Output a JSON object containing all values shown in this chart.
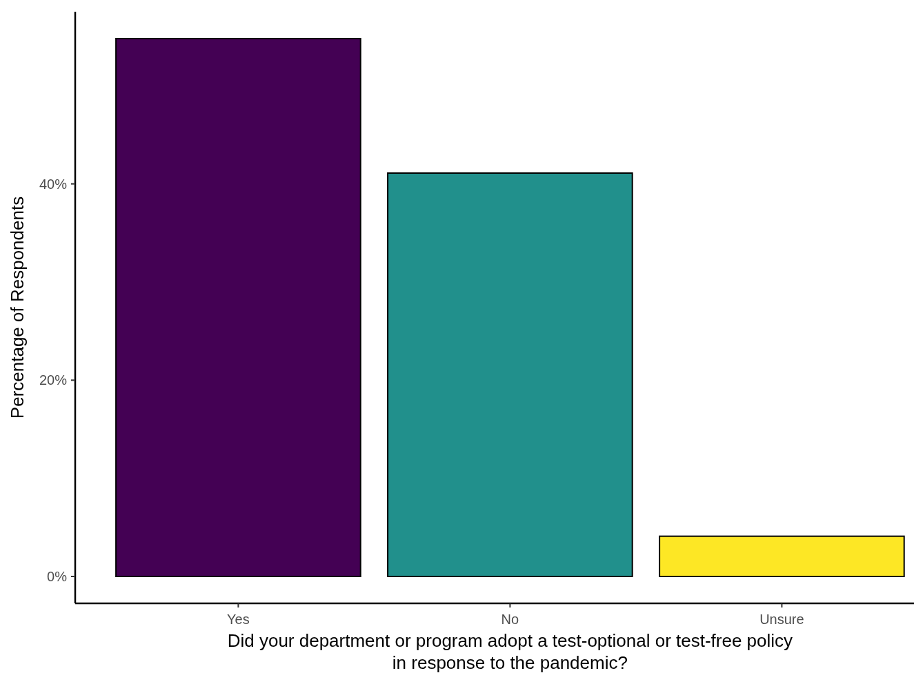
{
  "chart_data": {
    "type": "bar",
    "xlabel": "Did your department or program adopt a test-optional or test-free policy\nin response to the pandemic?",
    "ylabel": "Percentage of Respondents",
    "categories": [
      "Yes",
      "No",
      "Unsure"
    ],
    "values": [
      54.8,
      41.1,
      4.1
    ],
    "colors": [
      "#440154",
      "#21908c",
      "#fde725"
    ],
    "ylim": [
      -2.74,
      57.54
    ],
    "yticks": [
      {
        "value": 0,
        "label": "0%"
      },
      {
        "value": 20,
        "label": "20%"
      },
      {
        "value": 40,
        "label": "40%"
      }
    ],
    "grid": false
  }
}
